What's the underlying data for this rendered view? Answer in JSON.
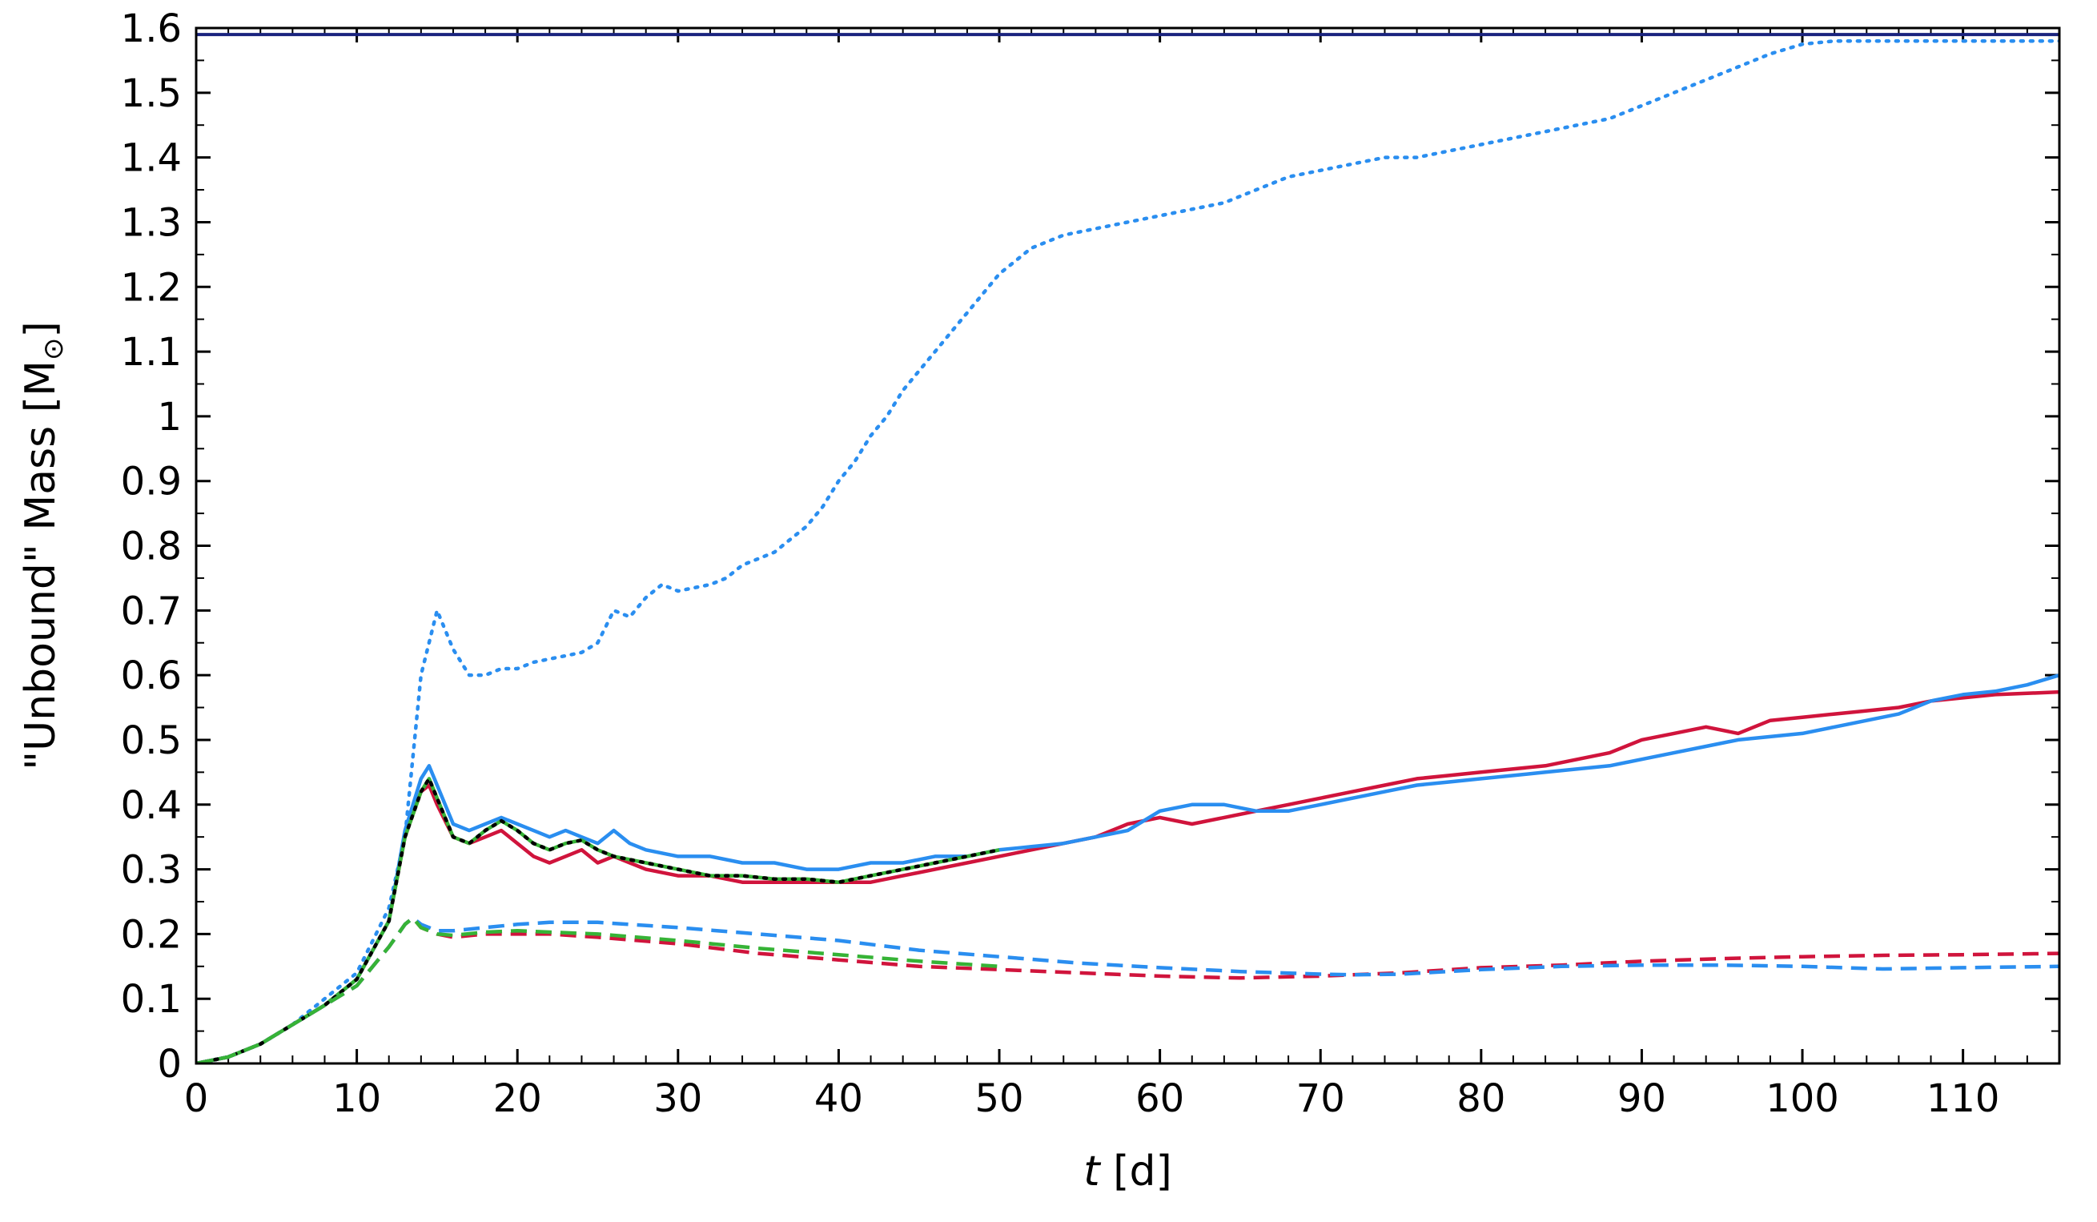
{
  "chart_data": {
    "type": "line",
    "xlabel": {
      "italic": "t",
      "rest": " [d]"
    },
    "ylabel": {
      "main": "\"Unbound\" Mass [M",
      "sub": "⊙",
      "close": "]"
    },
    "xlim": [
      0,
      116
    ],
    "ylim": [
      0,
      1.6
    ],
    "xticks": [
      0,
      10,
      20,
      30,
      40,
      50,
      60,
      70,
      80,
      90,
      100,
      110
    ],
    "xtick_labels": [
      "0",
      "10",
      "20",
      "30",
      "40",
      "50",
      "60",
      "70",
      "80",
      "90",
      "100",
      "110"
    ],
    "yticks": [
      0,
      0.1,
      0.2,
      0.3,
      0.4,
      0.5,
      0.6,
      0.7,
      0.8,
      0.9,
      1.0,
      1.1,
      1.2,
      1.3,
      1.4,
      1.5,
      1.6
    ],
    "ytick_labels": [
      "0",
      "0.1",
      "0.2",
      "0.3",
      "0.4",
      "0.5",
      "0.6",
      "0.7",
      "0.8",
      "0.9",
      "1",
      "1.1",
      "1.2",
      "1.3",
      "1.4",
      "1.5",
      "1.6"
    ],
    "grid": false,
    "hlines": [
      {
        "y": 1.59,
        "color": "#1a237e",
        "style": "solid"
      }
    ],
    "series": [
      {
        "color": "#2a8ef0",
        "style": "dotted",
        "x": [
          0,
          2,
          4,
          6,
          8,
          10,
          12,
          13,
          14,
          15,
          16,
          17,
          18,
          19,
          20,
          21,
          22,
          23,
          24,
          25,
          26,
          27,
          28,
          29,
          30,
          31,
          32,
          33,
          34,
          35,
          36,
          37,
          38,
          39,
          40,
          41,
          42,
          43,
          44,
          45,
          46,
          47,
          48,
          49,
          50,
          52,
          54,
          56,
          58,
          60,
          62,
          64,
          66,
          68,
          70,
          72,
          74,
          76,
          78,
          80,
          82,
          84,
          86,
          88,
          90,
          92,
          94,
          96,
          98,
          100,
          102,
          104,
          106,
          108,
          110,
          112,
          114,
          116
        ],
        "y": [
          0,
          0.01,
          0.03,
          0.06,
          0.1,
          0.14,
          0.24,
          0.35,
          0.6,
          0.7,
          0.64,
          0.6,
          0.6,
          0.61,
          0.61,
          0.62,
          0.625,
          0.63,
          0.635,
          0.65,
          0.7,
          0.69,
          0.72,
          0.74,
          0.73,
          0.735,
          0.74,
          0.75,
          0.77,
          0.78,
          0.79,
          0.81,
          0.83,
          0.86,
          0.9,
          0.93,
          0.97,
          1.0,
          1.04,
          1.07,
          1.1,
          1.13,
          1.16,
          1.19,
          1.22,
          1.26,
          1.28,
          1.29,
          1.3,
          1.31,
          1.32,
          1.33,
          1.35,
          1.37,
          1.38,
          1.39,
          1.4,
          1.4,
          1.41,
          1.42,
          1.43,
          1.44,
          1.45,
          1.46,
          1.48,
          1.5,
          1.52,
          1.54,
          1.56,
          1.575,
          1.58,
          1.58,
          1.58,
          1.58,
          1.58,
          1.58,
          1.58,
          1.58
        ]
      },
      {
        "color": "#d0143c",
        "style": "solid",
        "x": [
          0,
          2,
          4,
          6,
          8,
          10,
          12,
          13,
          14,
          14.5,
          15,
          16,
          17,
          18,
          19,
          20,
          21,
          22,
          23,
          24,
          25,
          26,
          27,
          28,
          30,
          32,
          34,
          36,
          38,
          40,
          42,
          44,
          46,
          48,
          50,
          52,
          54,
          56,
          58,
          60,
          62,
          64,
          66,
          68,
          70,
          72,
          74,
          76,
          78,
          80,
          82,
          84,
          86,
          88,
          90,
          92,
          94,
          96,
          98,
          100,
          102,
          104,
          106,
          108,
          110,
          112,
          114,
          116
        ],
        "y": [
          0,
          0.01,
          0.03,
          0.06,
          0.09,
          0.13,
          0.22,
          0.35,
          0.42,
          0.43,
          0.4,
          0.35,
          0.34,
          0.35,
          0.36,
          0.34,
          0.32,
          0.31,
          0.32,
          0.33,
          0.31,
          0.32,
          0.31,
          0.3,
          0.29,
          0.29,
          0.28,
          0.28,
          0.28,
          0.28,
          0.28,
          0.29,
          0.3,
          0.31,
          0.32,
          0.33,
          0.34,
          0.35,
          0.37,
          0.38,
          0.37,
          0.38,
          0.39,
          0.4,
          0.41,
          0.42,
          0.43,
          0.44,
          0.445,
          0.45,
          0.455,
          0.46,
          0.47,
          0.48,
          0.5,
          0.51,
          0.52,
          0.51,
          0.53,
          0.535,
          0.54,
          0.545,
          0.55,
          0.56,
          0.565,
          0.57,
          0.572,
          0.574
        ]
      },
      {
        "color": "#2a8ef0",
        "style": "solid",
        "x": [
          0,
          2,
          4,
          6,
          8,
          10,
          12,
          13,
          14,
          14.5,
          15,
          16,
          17,
          18,
          19,
          20,
          21,
          22,
          23,
          24,
          25,
          26,
          27,
          28,
          30,
          32,
          34,
          36,
          38,
          40,
          42,
          44,
          46,
          48,
          50,
          52,
          54,
          56,
          58,
          60,
          62,
          64,
          66,
          68,
          70,
          72,
          74,
          76,
          78,
          80,
          82,
          84,
          86,
          88,
          90,
          92,
          94,
          96,
          98,
          100,
          102,
          104,
          106,
          108,
          110,
          112,
          114,
          116
        ],
        "y": [
          0,
          0.01,
          0.03,
          0.06,
          0.09,
          0.13,
          0.22,
          0.36,
          0.44,
          0.46,
          0.43,
          0.37,
          0.36,
          0.37,
          0.38,
          0.37,
          0.36,
          0.35,
          0.36,
          0.35,
          0.34,
          0.36,
          0.34,
          0.33,
          0.32,
          0.32,
          0.31,
          0.31,
          0.3,
          0.3,
          0.31,
          0.31,
          0.32,
          0.32,
          0.33,
          0.335,
          0.34,
          0.35,
          0.36,
          0.39,
          0.4,
          0.4,
          0.39,
          0.39,
          0.4,
          0.41,
          0.42,
          0.43,
          0.435,
          0.44,
          0.445,
          0.45,
          0.455,
          0.46,
          0.47,
          0.48,
          0.49,
          0.5,
          0.505,
          0.51,
          0.52,
          0.53,
          0.54,
          0.56,
          0.57,
          0.575,
          0.585,
          0.6
        ]
      },
      {
        "color": "#36b336",
        "style": "solid",
        "x": [
          0,
          2,
          4,
          6,
          8,
          10,
          12,
          13,
          14,
          14.5,
          15,
          16,
          17,
          18,
          19,
          20,
          21,
          22,
          23,
          24,
          25,
          26,
          28,
          30,
          32,
          34,
          36,
          38,
          40,
          42,
          44,
          46,
          48,
          50
        ],
        "y": [
          0,
          0.01,
          0.03,
          0.06,
          0.09,
          0.13,
          0.22,
          0.35,
          0.42,
          0.44,
          0.41,
          0.35,
          0.34,
          0.36,
          0.375,
          0.36,
          0.34,
          0.33,
          0.34,
          0.345,
          0.33,
          0.32,
          0.31,
          0.3,
          0.29,
          0.29,
          0.285,
          0.285,
          0.28,
          0.29,
          0.3,
          0.31,
          0.32,
          0.33
        ]
      },
      {
        "color": "#000000",
        "style": "dotted",
        "x": [
          0,
          2,
          4,
          6,
          8,
          10,
          12,
          13,
          14,
          14.5,
          15,
          16,
          17,
          18,
          19,
          20,
          21,
          22,
          23,
          24,
          25,
          26,
          28,
          30,
          32,
          34,
          36,
          38,
          40,
          42,
          44,
          46,
          48,
          50
        ],
        "y": [
          0,
          0.01,
          0.03,
          0.06,
          0.09,
          0.13,
          0.22,
          0.35,
          0.42,
          0.44,
          0.41,
          0.35,
          0.34,
          0.36,
          0.375,
          0.36,
          0.34,
          0.33,
          0.34,
          0.345,
          0.33,
          0.32,
          0.31,
          0.3,
          0.29,
          0.29,
          0.285,
          0.285,
          0.28,
          0.29,
          0.3,
          0.31,
          0.32,
          0.33
        ]
      },
      {
        "color": "#d0143c",
        "style": "dashed",
        "x": [
          0,
          2,
          4,
          6,
          8,
          10,
          12,
          13,
          13.5,
          14,
          15,
          16,
          18,
          20,
          22,
          25,
          30,
          35,
          40,
          45,
          50,
          55,
          60,
          65,
          70,
          75,
          80,
          85,
          90,
          95,
          100,
          105,
          110,
          116
        ],
        "y": [
          0,
          0.01,
          0.03,
          0.06,
          0.09,
          0.12,
          0.18,
          0.215,
          0.225,
          0.21,
          0.2,
          0.195,
          0.2,
          0.2,
          0.2,
          0.195,
          0.185,
          0.17,
          0.16,
          0.15,
          0.145,
          0.14,
          0.135,
          0.132,
          0.135,
          0.14,
          0.148,
          0.152,
          0.158,
          0.162,
          0.165,
          0.167,
          0.168,
          0.17
        ]
      },
      {
        "color": "#2a8ef0",
        "style": "dashed",
        "x": [
          0,
          2,
          4,
          6,
          8,
          10,
          12,
          13,
          13.5,
          14,
          15,
          16,
          18,
          20,
          22,
          25,
          30,
          35,
          40,
          45,
          50,
          55,
          60,
          65,
          70,
          72,
          75,
          80,
          85,
          90,
          95,
          100,
          105,
          110,
          116
        ],
        "y": [
          0,
          0.01,
          0.03,
          0.06,
          0.09,
          0.12,
          0.18,
          0.215,
          0.225,
          0.215,
          0.205,
          0.205,
          0.21,
          0.215,
          0.218,
          0.218,
          0.21,
          0.2,
          0.19,
          0.175,
          0.165,
          0.155,
          0.148,
          0.142,
          0.138,
          0.137,
          0.138,
          0.145,
          0.15,
          0.152,
          0.152,
          0.15,
          0.146,
          0.148,
          0.15
        ]
      },
      {
        "color": "#36b336",
        "style": "dashed",
        "x": [
          0,
          2,
          4,
          6,
          8,
          10,
          12,
          13,
          13.5,
          14,
          15,
          16,
          18,
          20,
          22,
          25,
          30,
          35,
          40,
          45,
          50
        ],
        "y": [
          0,
          0.01,
          0.03,
          0.06,
          0.09,
          0.12,
          0.18,
          0.215,
          0.225,
          0.21,
          0.2,
          0.198,
          0.203,
          0.205,
          0.203,
          0.2,
          0.19,
          0.178,
          0.168,
          0.158,
          0.15
        ]
      }
    ]
  }
}
